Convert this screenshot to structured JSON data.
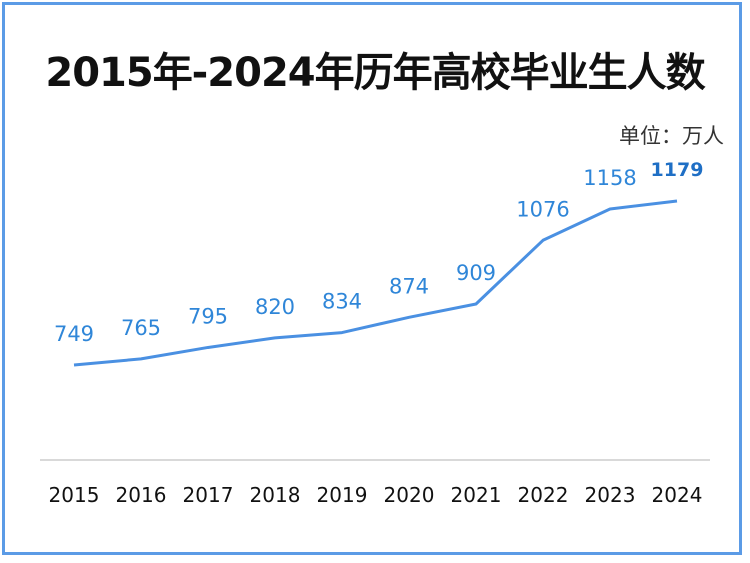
{
  "chart_data": {
    "type": "line",
    "title": "2015年-2024年历年高校毕业生人数",
    "unit_label": "单位：万人",
    "categories": [
      "2015",
      "2016",
      "2017",
      "2018",
      "2019",
      "2020",
      "2021",
      "2022",
      "2023",
      "2024"
    ],
    "values": [
      749,
      765,
      795,
      820,
      834,
      874,
      909,
      1076,
      1158,
      1179
    ],
    "highlight_last": true,
    "ylim": [
      500,
      1200
    ],
    "grid": false,
    "colors": {
      "line": "#4a90e2",
      "label": "#2f86d8",
      "highlight": "#1f6fc5",
      "frame": "#5b9be6"
    }
  }
}
